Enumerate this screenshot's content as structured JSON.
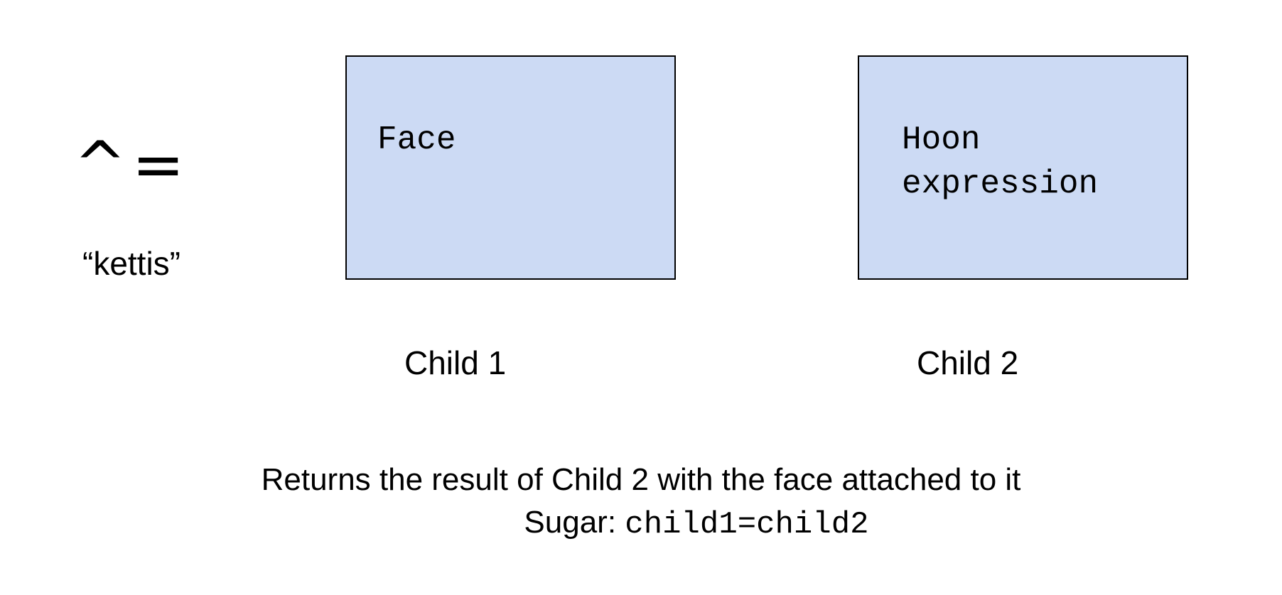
{
  "rune": {
    "symbol": "^=",
    "name": "“kettis”"
  },
  "children": [
    {
      "box_text": "Face",
      "label": "Child 1"
    },
    {
      "box_text": "Hoon\nexpression",
      "label": "Child 2"
    }
  ],
  "description": {
    "line1": "Returns the result of Child 2 with the face attached to it",
    "sugar_label": "Sugar: ",
    "sugar_code": "child1=child2"
  },
  "colors": {
    "box_fill": "#ccdaf4",
    "box_border": "#000000"
  }
}
